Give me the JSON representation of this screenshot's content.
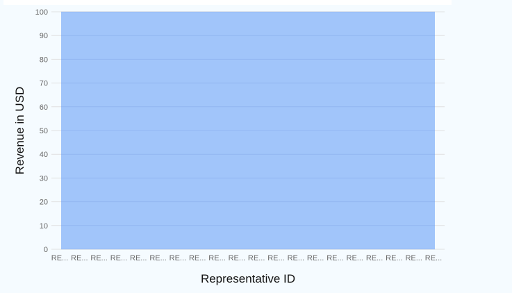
{
  "chart_data": {
    "type": "area",
    "title": "",
    "xlabel": "Representative ID",
    "ylabel": "Revenue in USD",
    "categories": [
      "RE...",
      "RE...",
      "RE...",
      "RE...",
      "RE...",
      "RE...",
      "RE...",
      "RE...",
      "RE...",
      "RE...",
      "RE...",
      "RE...",
      "RE...",
      "RE...",
      "RE...",
      "RE...",
      "RE...",
      "RE...",
      "RE...",
      "RE..."
    ],
    "values": [
      100,
      100,
      100,
      100,
      100,
      100,
      100,
      100,
      100,
      100,
      100,
      100,
      100,
      100,
      100,
      100,
      100,
      100,
      100,
      100
    ],
    "yticks": [
      "0",
      "10",
      "20",
      "30",
      "40",
      "50",
      "60",
      "70",
      "80",
      "90",
      "100"
    ],
    "ylim": [
      0,
      100
    ],
    "grid": true,
    "color": "#a1c5fa"
  }
}
